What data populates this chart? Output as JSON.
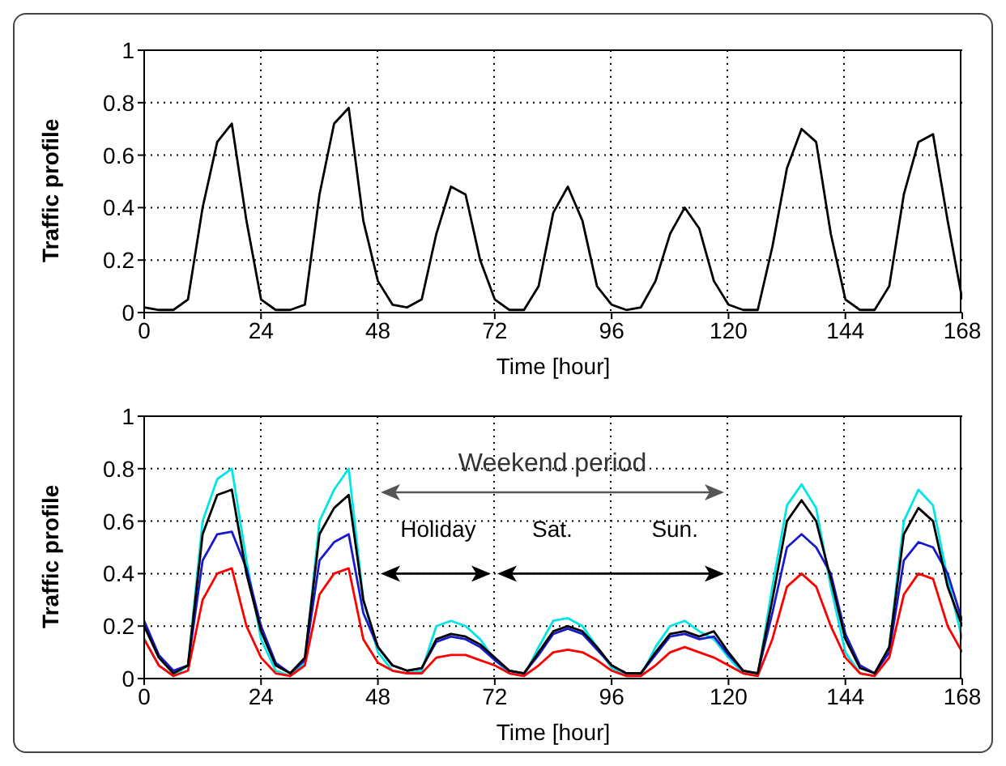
{
  "chart_data": [
    {
      "type": "line",
      "xlabel": "Time [hour]",
      "ylabel": "Traffic profile",
      "x": [
        0,
        3,
        6,
        9,
        12,
        15,
        18,
        21,
        24,
        27,
        30,
        33,
        36,
        39,
        42,
        45,
        48,
        51,
        54,
        57,
        60,
        63,
        66,
        69,
        72,
        75,
        78,
        81,
        84,
        87,
        90,
        93,
        96,
        99,
        102,
        105,
        108,
        111,
        114,
        117,
        120,
        123,
        126,
        129,
        132,
        135,
        138,
        141,
        144,
        147,
        150,
        153,
        156,
        159,
        162,
        165,
        168
      ],
      "series": [
        {
          "color": "#000000",
          "values": [
            0.02,
            0.01,
            0.01,
            0.05,
            0.4,
            0.65,
            0.72,
            0.35,
            0.05,
            0.01,
            0.01,
            0.03,
            0.45,
            0.72,
            0.78,
            0.35,
            0.12,
            0.03,
            0.02,
            0.05,
            0.3,
            0.48,
            0.45,
            0.2,
            0.05,
            0.01,
            0.01,
            0.1,
            0.38,
            0.48,
            0.35,
            0.1,
            0.03,
            0.01,
            0.02,
            0.12,
            0.3,
            0.4,
            0.32,
            0.12,
            0.03,
            0.01,
            0.01,
            0.25,
            0.55,
            0.7,
            0.65,
            0.3,
            0.05,
            0.01,
            0.01,
            0.1,
            0.45,
            0.65,
            0.68,
            0.35,
            0.05
          ]
        }
      ],
      "xlim": [
        0,
        168
      ],
      "xticks": [
        0,
        24,
        48,
        72,
        96,
        120,
        144,
        168
      ],
      "ylim": [
        0,
        1
      ],
      "yticks": [
        0,
        0.2,
        0.4,
        0.6,
        0.8,
        1
      ],
      "grid": true
    },
    {
      "type": "line",
      "xlabel": "Time [hour]",
      "ylabel": "Traffic profile",
      "x": [
        0,
        3,
        6,
        9,
        12,
        15,
        18,
        21,
        24,
        27,
        30,
        33,
        36,
        39,
        42,
        45,
        48,
        51,
        54,
        57,
        60,
        63,
        66,
        69,
        72,
        75,
        78,
        81,
        84,
        87,
        90,
        93,
        96,
        99,
        102,
        105,
        108,
        111,
        114,
        117,
        120,
        123,
        126,
        129,
        132,
        135,
        138,
        141,
        144,
        147,
        150,
        153,
        156,
        159,
        162,
        165,
        168
      ],
      "series": [
        {
          "color": "#00e5e5",
          "values": [
            0.15,
            0.05,
            0.01,
            0.05,
            0.6,
            0.76,
            0.8,
            0.45,
            0.15,
            0.03,
            0.01,
            0.06,
            0.6,
            0.72,
            0.8,
            0.3,
            0.1,
            0.03,
            0.02,
            0.03,
            0.2,
            0.22,
            0.2,
            0.15,
            0.07,
            0.02,
            0.01,
            0.12,
            0.22,
            0.23,
            0.2,
            0.12,
            0.04,
            0.01,
            0.01,
            0.12,
            0.2,
            0.22,
            0.18,
            0.15,
            0.08,
            0.02,
            0.01,
            0.35,
            0.66,
            0.74,
            0.65,
            0.35,
            0.1,
            0.02,
            0.01,
            0.12,
            0.6,
            0.72,
            0.66,
            0.38,
            0.15
          ]
        },
        {
          "color": "#1a1acc",
          "values": [
            0.22,
            0.09,
            0.03,
            0.05,
            0.45,
            0.55,
            0.56,
            0.42,
            0.2,
            0.06,
            0.02,
            0.07,
            0.45,
            0.52,
            0.55,
            0.25,
            0.12,
            0.05,
            0.03,
            0.04,
            0.14,
            0.16,
            0.15,
            0.12,
            0.07,
            0.03,
            0.02,
            0.09,
            0.17,
            0.19,
            0.17,
            0.11,
            0.05,
            0.02,
            0.02,
            0.09,
            0.16,
            0.17,
            0.15,
            0.16,
            0.09,
            0.03,
            0.02,
            0.25,
            0.5,
            0.55,
            0.5,
            0.4,
            0.17,
            0.05,
            0.02,
            0.1,
            0.45,
            0.52,
            0.5,
            0.4,
            0.22
          ]
        },
        {
          "color": "#ff0000",
          "values": [
            0.15,
            0.05,
            0.01,
            0.03,
            0.3,
            0.4,
            0.42,
            0.2,
            0.08,
            0.02,
            0.01,
            0.05,
            0.32,
            0.4,
            0.42,
            0.15,
            0.06,
            0.03,
            0.02,
            0.02,
            0.08,
            0.09,
            0.09,
            0.07,
            0.05,
            0.02,
            0.01,
            0.05,
            0.1,
            0.11,
            0.1,
            0.07,
            0.03,
            0.01,
            0.01,
            0.05,
            0.1,
            0.12,
            0.1,
            0.08,
            0.05,
            0.02,
            0.01,
            0.15,
            0.35,
            0.4,
            0.35,
            0.2,
            0.08,
            0.02,
            0.01,
            0.08,
            0.32,
            0.4,
            0.38,
            0.2,
            0.1
          ]
        },
        {
          "color": "#000000",
          "values": [
            0.2,
            0.08,
            0.02,
            0.05,
            0.55,
            0.7,
            0.72,
            0.4,
            0.18,
            0.05,
            0.02,
            0.08,
            0.55,
            0.65,
            0.7,
            0.3,
            0.12,
            0.05,
            0.03,
            0.04,
            0.15,
            0.17,
            0.16,
            0.13,
            0.08,
            0.03,
            0.02,
            0.1,
            0.18,
            0.2,
            0.18,
            0.12,
            0.05,
            0.02,
            0.02,
            0.1,
            0.17,
            0.18,
            0.16,
            0.18,
            0.1,
            0.03,
            0.02,
            0.3,
            0.6,
            0.68,
            0.6,
            0.38,
            0.15,
            0.04,
            0.02,
            0.12,
            0.55,
            0.65,
            0.6,
            0.35,
            0.2
          ]
        }
      ],
      "xlim": [
        0,
        168
      ],
      "xticks": [
        0,
        24,
        48,
        72,
        96,
        120,
        144,
        168
      ],
      "ylim": [
        0,
        1
      ],
      "yticks": [
        0,
        0.2,
        0.4,
        0.6,
        0.8,
        1
      ],
      "grid": true,
      "annotations": [
        "Weekend period",
        "Holiday",
        "Sat.",
        "Sun."
      ]
    }
  ]
}
